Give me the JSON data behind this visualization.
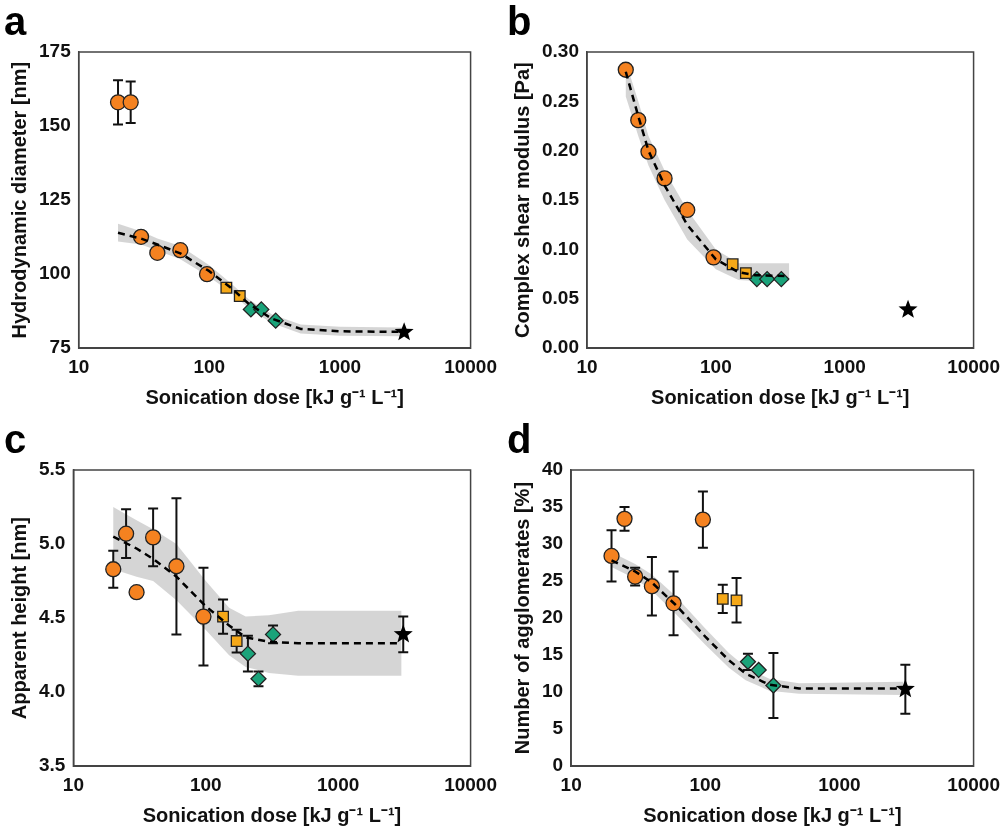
{
  "chart_data": [
    {
      "type": "scatter",
      "title": "a",
      "xlabel": "Sonication dose [kJ g⁻¹ L⁻¹]",
      "ylabel": "Hydrodynamic diameter [nm]",
      "log": "x",
      "grid": false,
      "legend": false,
      "xlim": [
        10,
        10000
      ],
      "xticks": [
        10,
        100,
        1000,
        10000
      ],
      "ylim": [
        75,
        175
      ],
      "yticks": [
        75,
        100,
        125,
        150,
        175
      ],
      "series": [
        {
          "type": "line",
          "color": "#000000",
          "line_style": "dashed",
          "marker": "none",
          "x": [
            20,
            30,
            40,
            60,
            100,
            150,
            200,
            300,
            500,
            1000,
            3000
          ],
          "values": [
            114,
            112,
            110,
            107,
            101,
            95,
            90,
            85,
            81.5,
            80.7,
            80.5
          ],
          "lower": [
            111,
            110,
            108,
            105,
            99,
            93.5,
            88.5,
            83.5,
            80,
            79.2,
            79
          ],
          "upper": [
            117,
            114.5,
            112,
            109.5,
            103,
            96.5,
            91.5,
            86.5,
            83,
            82.2,
            82
          ]
        },
        {
          "color": "#f58220",
          "marker": "circle",
          "x": [
            20,
            25,
            30,
            40,
            60,
            96
          ],
          "values": [
            158,
            158,
            112.6,
            107.2,
            108.1,
            100
          ],
          "errors": [
            7.5,
            7,
            null,
            null,
            null,
            null
          ]
        },
        {
          "color": "#f5a818",
          "marker": "square",
          "x": [
            135,
            171
          ],
          "values": [
            95.4,
            92.6
          ]
        },
        {
          "color": "#1aa37a",
          "marker": "diamond",
          "x": [
            208,
            250,
            322
          ],
          "values": [
            88.1,
            88.1,
            84.3
          ]
        },
        {
          "color": "#000000",
          "marker": "star",
          "x": [
            3100
          ],
          "values": [
            80.4
          ]
        }
      ]
    },
    {
      "type": "scatter",
      "title": "b",
      "xlabel": "Sonication dose [kJ g⁻¹ L⁻¹]",
      "ylabel": "Complex shear modulus [Pa]",
      "log": "x",
      "grid": false,
      "legend": false,
      "xlim": [
        10,
        10000
      ],
      "xticks": [
        10,
        100,
        1000,
        10000
      ],
      "ylim": [
        0,
        0.3
      ],
      "yticks": [
        {
          "value": 0,
          "label": "0.00"
        },
        {
          "value": 0.05,
          "label": "0.05"
        },
        {
          "value": 0.1,
          "label": "0.10"
        },
        {
          "value": 0.15,
          "label": "0.15"
        },
        {
          "value": 0.2,
          "label": "0.20"
        },
        {
          "value": 0.25,
          "label": "0.25"
        },
        {
          "value": 0.3,
          "label": "0.30"
        }
      ],
      "series": [
        {
          "type": "line",
          "color": "#000000",
          "line_style": "dashed",
          "marker": "none",
          "x": [
            20,
            25,
            30,
            40,
            60,
            100,
            150,
            200,
            370
          ],
          "values": [
            0.28,
            0.235,
            0.2,
            0.165,
            0.125,
            0.09,
            0.077,
            0.074,
            0.073
          ],
          "lower": [
            0.255,
            0.215,
            0.185,
            0.15,
            0.11,
            0.08,
            0.069,
            0.068,
            0.068
          ],
          "upper": [
            0.29,
            0.25,
            0.215,
            0.18,
            0.14,
            0.1,
            0.086,
            0.086,
            0.086
          ]
        },
        {
          "color": "#f58220",
          "marker": "circle",
          "x": [
            20,
            25,
            30,
            40,
            60,
            96
          ],
          "values": [
            0.282,
            0.231,
            0.199,
            0.172,
            0.14,
            0.092
          ]
        },
        {
          "color": "#f5a818",
          "marker": "square",
          "x": [
            135,
            171
          ],
          "values": [
            0.085,
            0.076
          ]
        },
        {
          "color": "#1aa37a",
          "marker": "diamond",
          "x": [
            208,
            250,
            322
          ],
          "values": [
            0.07,
            0.07,
            0.07
          ]
        },
        {
          "color": "#000000",
          "marker": "star",
          "x": [
            3100
          ],
          "values": [
            0.039
          ]
        }
      ]
    },
    {
      "type": "scatter",
      "title": "c",
      "xlabel": "Sonication dose [kJ g⁻¹ L⁻¹]",
      "ylabel": "Apparent height [nm]",
      "log": "x",
      "grid": false,
      "legend": false,
      "xlim": [
        10,
        10000
      ],
      "xticks": [
        10,
        100,
        1000,
        10000
      ],
      "ylim": [
        3.5,
        5.5
      ],
      "yticks": [
        3.5,
        {
          "value": 4,
          "label": "4.0"
        },
        4.5,
        {
          "value": 5,
          "label": "5.0"
        },
        5.5
      ],
      "series": [
        {
          "type": "line",
          "color": "#000000",
          "line_style": "dashed",
          "marker": "none",
          "x": [
            20,
            30,
            40,
            60,
            100,
            150,
            200,
            300,
            500,
            3000
          ],
          "values": [
            5.05,
            4.97,
            4.9,
            4.78,
            4.58,
            4.45,
            4.37,
            4.34,
            4.33,
            4.33
          ],
          "lower": [
            4.83,
            4.78,
            4.75,
            4.62,
            4.42,
            4.25,
            4.17,
            4.13,
            4.11,
            4.11
          ],
          "upper": [
            5.25,
            5.16,
            5.1,
            5.0,
            4.75,
            4.57,
            4.51,
            4.52,
            4.55,
            4.55
          ]
        },
        {
          "color": "#f58220",
          "marker": "circle",
          "x": [
            20,
            25,
            30,
            40,
            60,
            96
          ],
          "values": [
            4.83,
            5.07,
            4.675,
            5.045,
            4.85,
            4.51
          ],
          "errors": [
            0.125,
            0.165,
            null,
            0.195,
            0.46,
            0.33
          ]
        },
        {
          "color": "#f5a818",
          "marker": "square",
          "x": [
            135,
            171
          ],
          "values": [
            4.51,
            4.345
          ],
          "errors": [
            0.115,
            0.077
          ]
        },
        {
          "color": "#1aa37a",
          "marker": "diamond",
          "x": [
            208,
            250,
            322
          ],
          "values": [
            4.26,
            4.09,
            4.39
          ],
          "errors": [
            0.12,
            0.05,
            0.06
          ]
        },
        {
          "color": "#000000",
          "marker": "star",
          "x": [
            3100
          ],
          "values": [
            4.39
          ],
          "errors": [
            0.12
          ]
        }
      ]
    },
    {
      "type": "scatter",
      "title": "d",
      "xlabel": "Sonication dose [kJ g⁻¹ L⁻¹]",
      "ylabel": "Number of agglomerates [%]",
      "log": "x",
      "grid": false,
      "legend": false,
      "xlim": [
        10,
        10000
      ],
      "xticks": [
        10,
        100,
        1000,
        10000
      ],
      "ylim": [
        0,
        40
      ],
      "yticks": [
        0,
        5,
        10,
        15,
        20,
        25,
        30,
        35,
        40
      ],
      "series": [
        {
          "type": "line",
          "color": "#000000",
          "line_style": "dashed",
          "marker": "none",
          "x": [
            20,
            30,
            40,
            60,
            100,
            150,
            200,
            300,
            500,
            3000
          ],
          "values": [
            27.8,
            26.3,
            24.8,
            21.8,
            17.5,
            14.3,
            12.5,
            11,
            10.5,
            10.5
          ],
          "lower": [
            26.9,
            25.3,
            23.7,
            20.6,
            16.4,
            13.3,
            11.6,
            10.2,
            9.8,
            9.6
          ],
          "upper": [
            28.9,
            27.3,
            25.9,
            23,
            18.6,
            15.3,
            13.4,
            11.8,
            11.2,
            11.4
          ]
        },
        {
          "color": "#f58220",
          "marker": "circle",
          "x": [
            20,
            25,
            30,
            40,
            58,
            96
          ],
          "values": [
            28.4,
            33.4,
            25.6,
            24.3,
            22,
            33.3
          ],
          "errors": [
            3.45,
            1.6,
            1.2,
            3.95,
            4.3,
            3.8
          ]
        },
        {
          "color": "#f5a818",
          "marker": "square",
          "x": [
            135,
            171
          ],
          "values": [
            22.6,
            22.4
          ],
          "errors": [
            1.9,
            3
          ]
        },
        {
          "color": "#1aa37a",
          "marker": "diamond",
          "x": [
            208,
            250,
            322
          ],
          "values": [
            14.1,
            13,
            10.9
          ],
          "errors": [
            1.1,
            null,
            4.4
          ]
        },
        {
          "color": "#000000",
          "marker": "star",
          "x": [
            3100
          ],
          "values": [
            10.4
          ],
          "errors": [
            3.3
          ]
        }
      ]
    }
  ]
}
